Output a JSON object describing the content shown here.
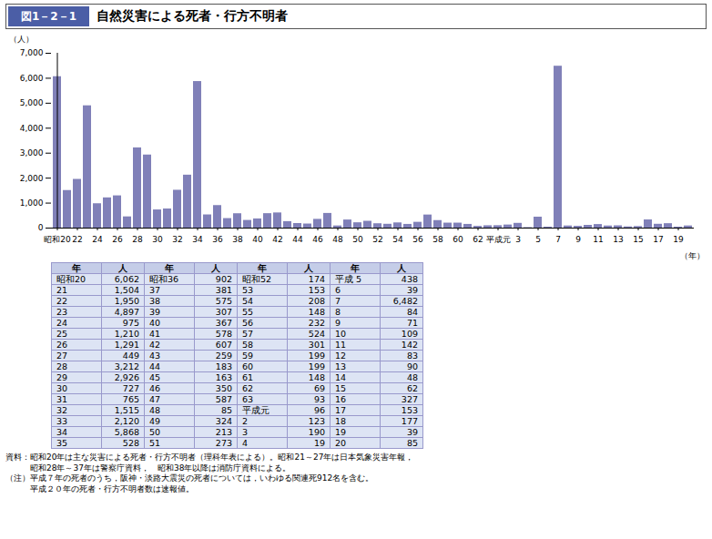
{
  "chart_data": {
    "type": "bar",
    "title_label": "図1－2－1",
    "title": "自然災害による死者・行方不明者",
    "ylabel": "（人）",
    "xlabel": "（年）",
    "categories": [
      "昭和20",
      null,
      "22",
      null,
      "24",
      null,
      "26",
      null,
      "28",
      null,
      "30",
      null,
      "32",
      null,
      "34",
      null,
      "36",
      null,
      "38",
      null,
      "40",
      null,
      "42",
      null,
      "44",
      null,
      "46",
      null,
      "48",
      null,
      "50",
      null,
      "52",
      null,
      "54",
      null,
      "56",
      null,
      "58",
      null,
      "60",
      null,
      "62",
      null,
      "平成元",
      null,
      "3",
      null,
      "5",
      null,
      "7",
      null,
      "9",
      null,
      "11",
      null,
      "13",
      null,
      "15",
      null,
      "17",
      null,
      "19",
      null
    ],
    "values": [
      6062,
      1504,
      1950,
      4897,
      975,
      1210,
      1291,
      449,
      3212,
      2926,
      727,
      765,
      1515,
      2120,
      5868,
      528,
      902,
      381,
      575,
      307,
      367,
      578,
      607,
      259,
      183,
      163,
      350,
      587,
      85,
      324,
      213,
      273,
      174,
      153,
      208,
      148,
      232,
      524,
      301,
      199,
      199,
      148,
      69,
      93,
      96,
      123,
      190,
      19,
      438,
      39,
      6482,
      84,
      71,
      109,
      142,
      83,
      90,
      48,
      62,
      327,
      153,
      177,
      39,
      85
    ],
    "color": "#8080b8",
    "ylim": [
      0,
      7000
    ],
    "yticks": [
      0,
      {
        "value": 1000,
        "label": "1,000"
      },
      {
        "value": 2000,
        "label": "2,000"
      },
      {
        "value": 3000,
        "label": "3,000"
      },
      {
        "value": 4000,
        "label": "4,000"
      },
      {
        "value": 5000,
        "label": "5,000"
      },
      {
        "value": 6000,
        "label": "6,000"
      },
      {
        "value": 7000,
        "label": "7,000"
      }
    ],
    "grid": false,
    "table": {
      "header": [
        "年",
        "人",
        "年",
        "人",
        "年",
        "人",
        "年",
        "人"
      ],
      "rows": [
        [
          "昭和20",
          "6,062",
          "昭和36",
          "902",
          "昭和52",
          "174",
          "平成 5",
          "438"
        ],
        [
          "21",
          "1,504",
          "37",
          "381",
          "53",
          "153",
          "6",
          "39"
        ],
        [
          "22",
          "1,950",
          "38",
          "575",
          "54",
          "208",
          "7",
          "6,482"
        ],
        [
          "23",
          "4,897",
          "39",
          "307",
          "55",
          "148",
          "8",
          "84"
        ],
        [
          "24",
          "975",
          "40",
          "367",
          "56",
          "232",
          "9",
          "71"
        ],
        [
          "25",
          "1,210",
          "41",
          "578",
          "57",
          "524",
          "10",
          "109"
        ],
        [
          "26",
          "1,291",
          "42",
          "607",
          "58",
          "301",
          "11",
          "142"
        ],
        [
          "27",
          "449",
          "43",
          "259",
          "59",
          "199",
          "12",
          "83"
        ],
        [
          "28",
          "3,212",
          "44",
          "183",
          "60",
          "199",
          "13",
          "90"
        ],
        [
          "29",
          "2,926",
          "45",
          "163",
          "61",
          "148",
          "14",
          "48"
        ],
        [
          "30",
          "727",
          "46",
          "350",
          "62",
          "69",
          "15",
          "62"
        ],
        [
          "31",
          "765",
          "47",
          "587",
          "63",
          "93",
          "16",
          "327"
        ],
        [
          "32",
          "1,515",
          "48",
          "85",
          "平成元",
          "96",
          "17",
          "153"
        ],
        [
          "33",
          "2,120",
          "49",
          "324",
          "2",
          "123",
          "18",
          "177"
        ],
        [
          "34",
          "5,868",
          "50",
          "213",
          "3",
          "190",
          "19",
          "39"
        ],
        [
          "35",
          "528",
          "51",
          "273",
          "4",
          "19",
          "20",
          "85"
        ]
      ]
    },
    "notes": [
      "資料：昭和20年は主な災害による死者・行方不明者（理科年表による）。昭和21～27年は日本気象災害年報，",
      "　　　昭和28年～37年は警察庁資料，　昭和38年以降は消防庁資料による。",
      "（注）平成７年の死者のうち，阪神・淡路大震災の死者については，いわゆる関連死912名を含む。",
      "　　　平成２０年の死者・行方不明者数は速報値。"
    ]
  }
}
